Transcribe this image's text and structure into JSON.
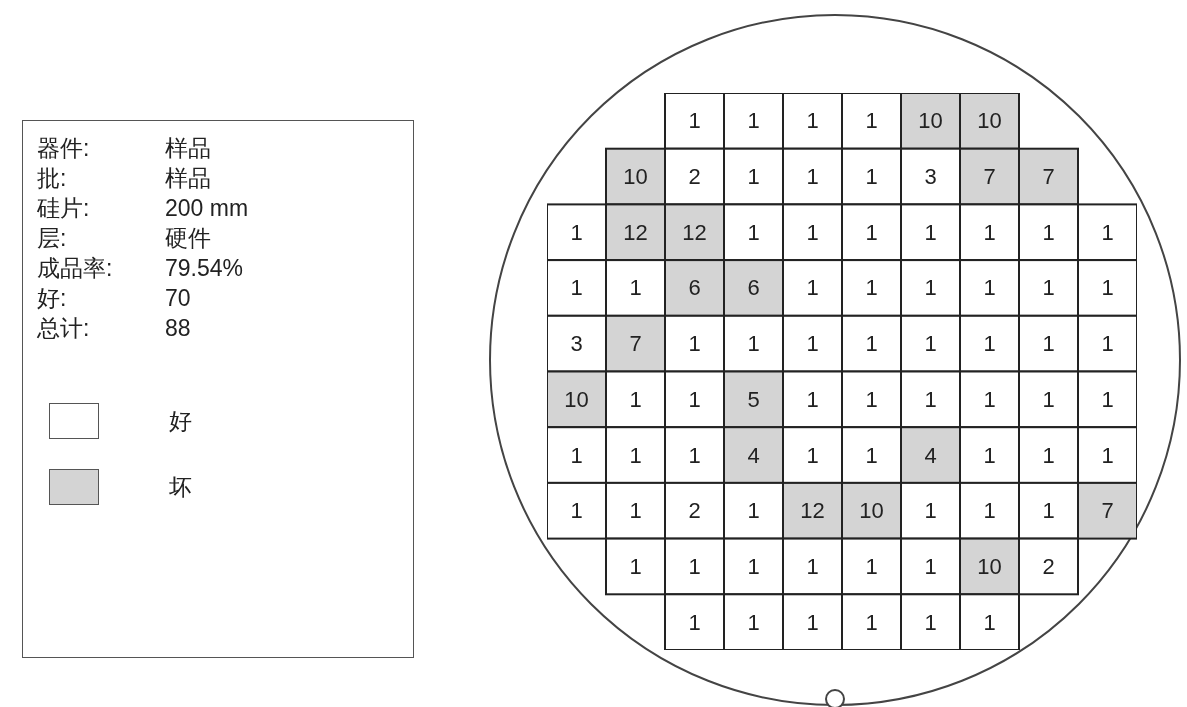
{
  "chart_data": {
    "type": "heatmap",
    "categories": [
      null,
      null,
      null,
      null,
      null,
      null,
      null,
      null,
      null,
      null
    ],
    "y_categories": [
      null,
      null,
      null,
      null,
      null,
      null,
      null,
      null,
      null,
      null
    ],
    "data_labels": true,
    "annotations": [
      "器件:",
      "样品",
      "批:",
      "样品",
      "硅片:",
      "200 mm",
      "层:",
      "硬件",
      "成品率:",
      "79.54%",
      "好:",
      "70",
      "总计:",
      "88",
      "好",
      "坏"
    ],
    "cells": [
      [
        null,
        null,
        1,
        1,
        1,
        1,
        10,
        10,
        null,
        null
      ],
      [
        null,
        10,
        2,
        1,
        1,
        1,
        3,
        7,
        7,
        null
      ],
      [
        1,
        12,
        12,
        1,
        1,
        1,
        1,
        1,
        1,
        1
      ],
      [
        1,
        1,
        6,
        6,
        1,
        1,
        1,
        1,
        1,
        1
      ],
      [
        3,
        7,
        1,
        1,
        1,
        1,
        1,
        1,
        1,
        1
      ],
      [
        10,
        1,
        1,
        5,
        1,
        1,
        1,
        1,
        1,
        1
      ],
      [
        1,
        1,
        1,
        4,
        1,
        1,
        4,
        1,
        1,
        1
      ],
      [
        1,
        1,
        2,
        1,
        12,
        10,
        1,
        1,
        1,
        7
      ],
      [
        null,
        1,
        1,
        1,
        1,
        1,
        1,
        10,
        2,
        null
      ],
      [
        null,
        null,
        1,
        1,
        1,
        1,
        1,
        1,
        null,
        null
      ]
    ],
    "colors": [
      [
        null,
        null,
        "#ffffff",
        "#ffffff",
        "#ffffff",
        "#ffffff",
        "#d4d4d4",
        "#d4d4d4",
        null,
        null
      ],
      [
        null,
        "#d4d4d4",
        "#ffffff",
        "#ffffff",
        "#ffffff",
        "#ffffff",
        "#ffffff",
        "#d4d4d4",
        "#d4d4d4",
        null
      ],
      [
        "#ffffff",
        "#d4d4d4",
        "#d4d4d4",
        "#ffffff",
        "#ffffff",
        "#ffffff",
        "#ffffff",
        "#ffffff",
        "#ffffff",
        "#ffffff"
      ],
      [
        "#ffffff",
        "#ffffff",
        "#d4d4d4",
        "#d4d4d4",
        "#ffffff",
        "#ffffff",
        "#ffffff",
        "#ffffff",
        "#ffffff",
        "#ffffff"
      ],
      [
        "#ffffff",
        "#d4d4d4",
        "#ffffff",
        "#ffffff",
        "#ffffff",
        "#ffffff",
        "#ffffff",
        "#ffffff",
        "#ffffff",
        "#ffffff"
      ],
      [
        "#d4d4d4",
        "#ffffff",
        "#ffffff",
        "#d4d4d4",
        "#ffffff",
        "#ffffff",
        "#ffffff",
        "#ffffff",
        "#ffffff",
        "#ffffff"
      ],
      [
        "#ffffff",
        "#ffffff",
        "#ffffff",
        "#d4d4d4",
        "#ffffff",
        "#ffffff",
        "#d4d4d4",
        "#ffffff",
        "#ffffff",
        "#ffffff"
      ],
      [
        "#ffffff",
        "#ffffff",
        "#ffffff",
        "#ffffff",
        "#d4d4d4",
        "#d4d4d4",
        "#ffffff",
        "#ffffff",
        "#ffffff",
        "#d4d4d4"
      ],
      [
        null,
        "#ffffff",
        "#ffffff",
        "#ffffff",
        "#ffffff",
        "#ffffff",
        "#ffffff",
        "#d4d4d4",
        "#ffffff",
        null
      ],
      [
        null,
        null,
        "#ffffff",
        "#ffffff",
        "#ffffff",
        "#ffffff",
        "#ffffff",
        "#ffffff",
        null,
        null
      ]
    ]
  }
}
